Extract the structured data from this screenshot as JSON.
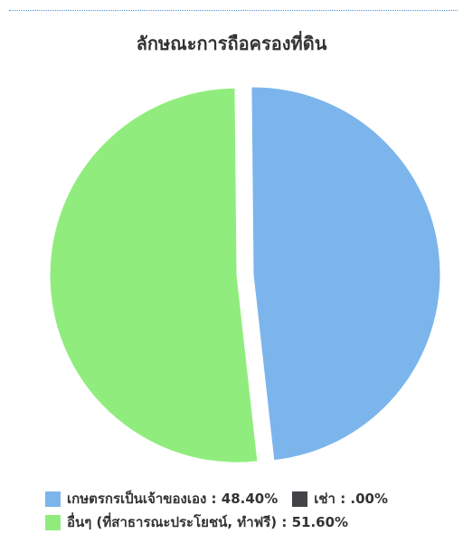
{
  "chart_data": {
    "type": "pie",
    "title": "ลักษณะการถือครองที่ดิน",
    "slices": [
      {
        "label": "เกษตรกรเป็นเจ้าของเอง",
        "value": 48.4,
        "display": "48.40%",
        "color": "#7cb5ec",
        "exploded": false
      },
      {
        "label": "เช่า",
        "value": 0.0,
        "display": ".00%",
        "color": "#434348",
        "exploded": false
      },
      {
        "label": "อื่นๆ (ที่สาธารณะประโยชน์, ทำฟรี)",
        "value": 51.6,
        "display": "51.60%",
        "color": "#90ed7d",
        "exploded": true
      }
    ],
    "legend_position": "bottom"
  },
  "legend_text": [
    "เกษตรกรเป็นเจ้าของเอง : 48.40%",
    "เช่า : .00%",
    "อื่นๆ (ที่สาธารณะประโยชน์, ทำฟรี) : 51.60%"
  ]
}
